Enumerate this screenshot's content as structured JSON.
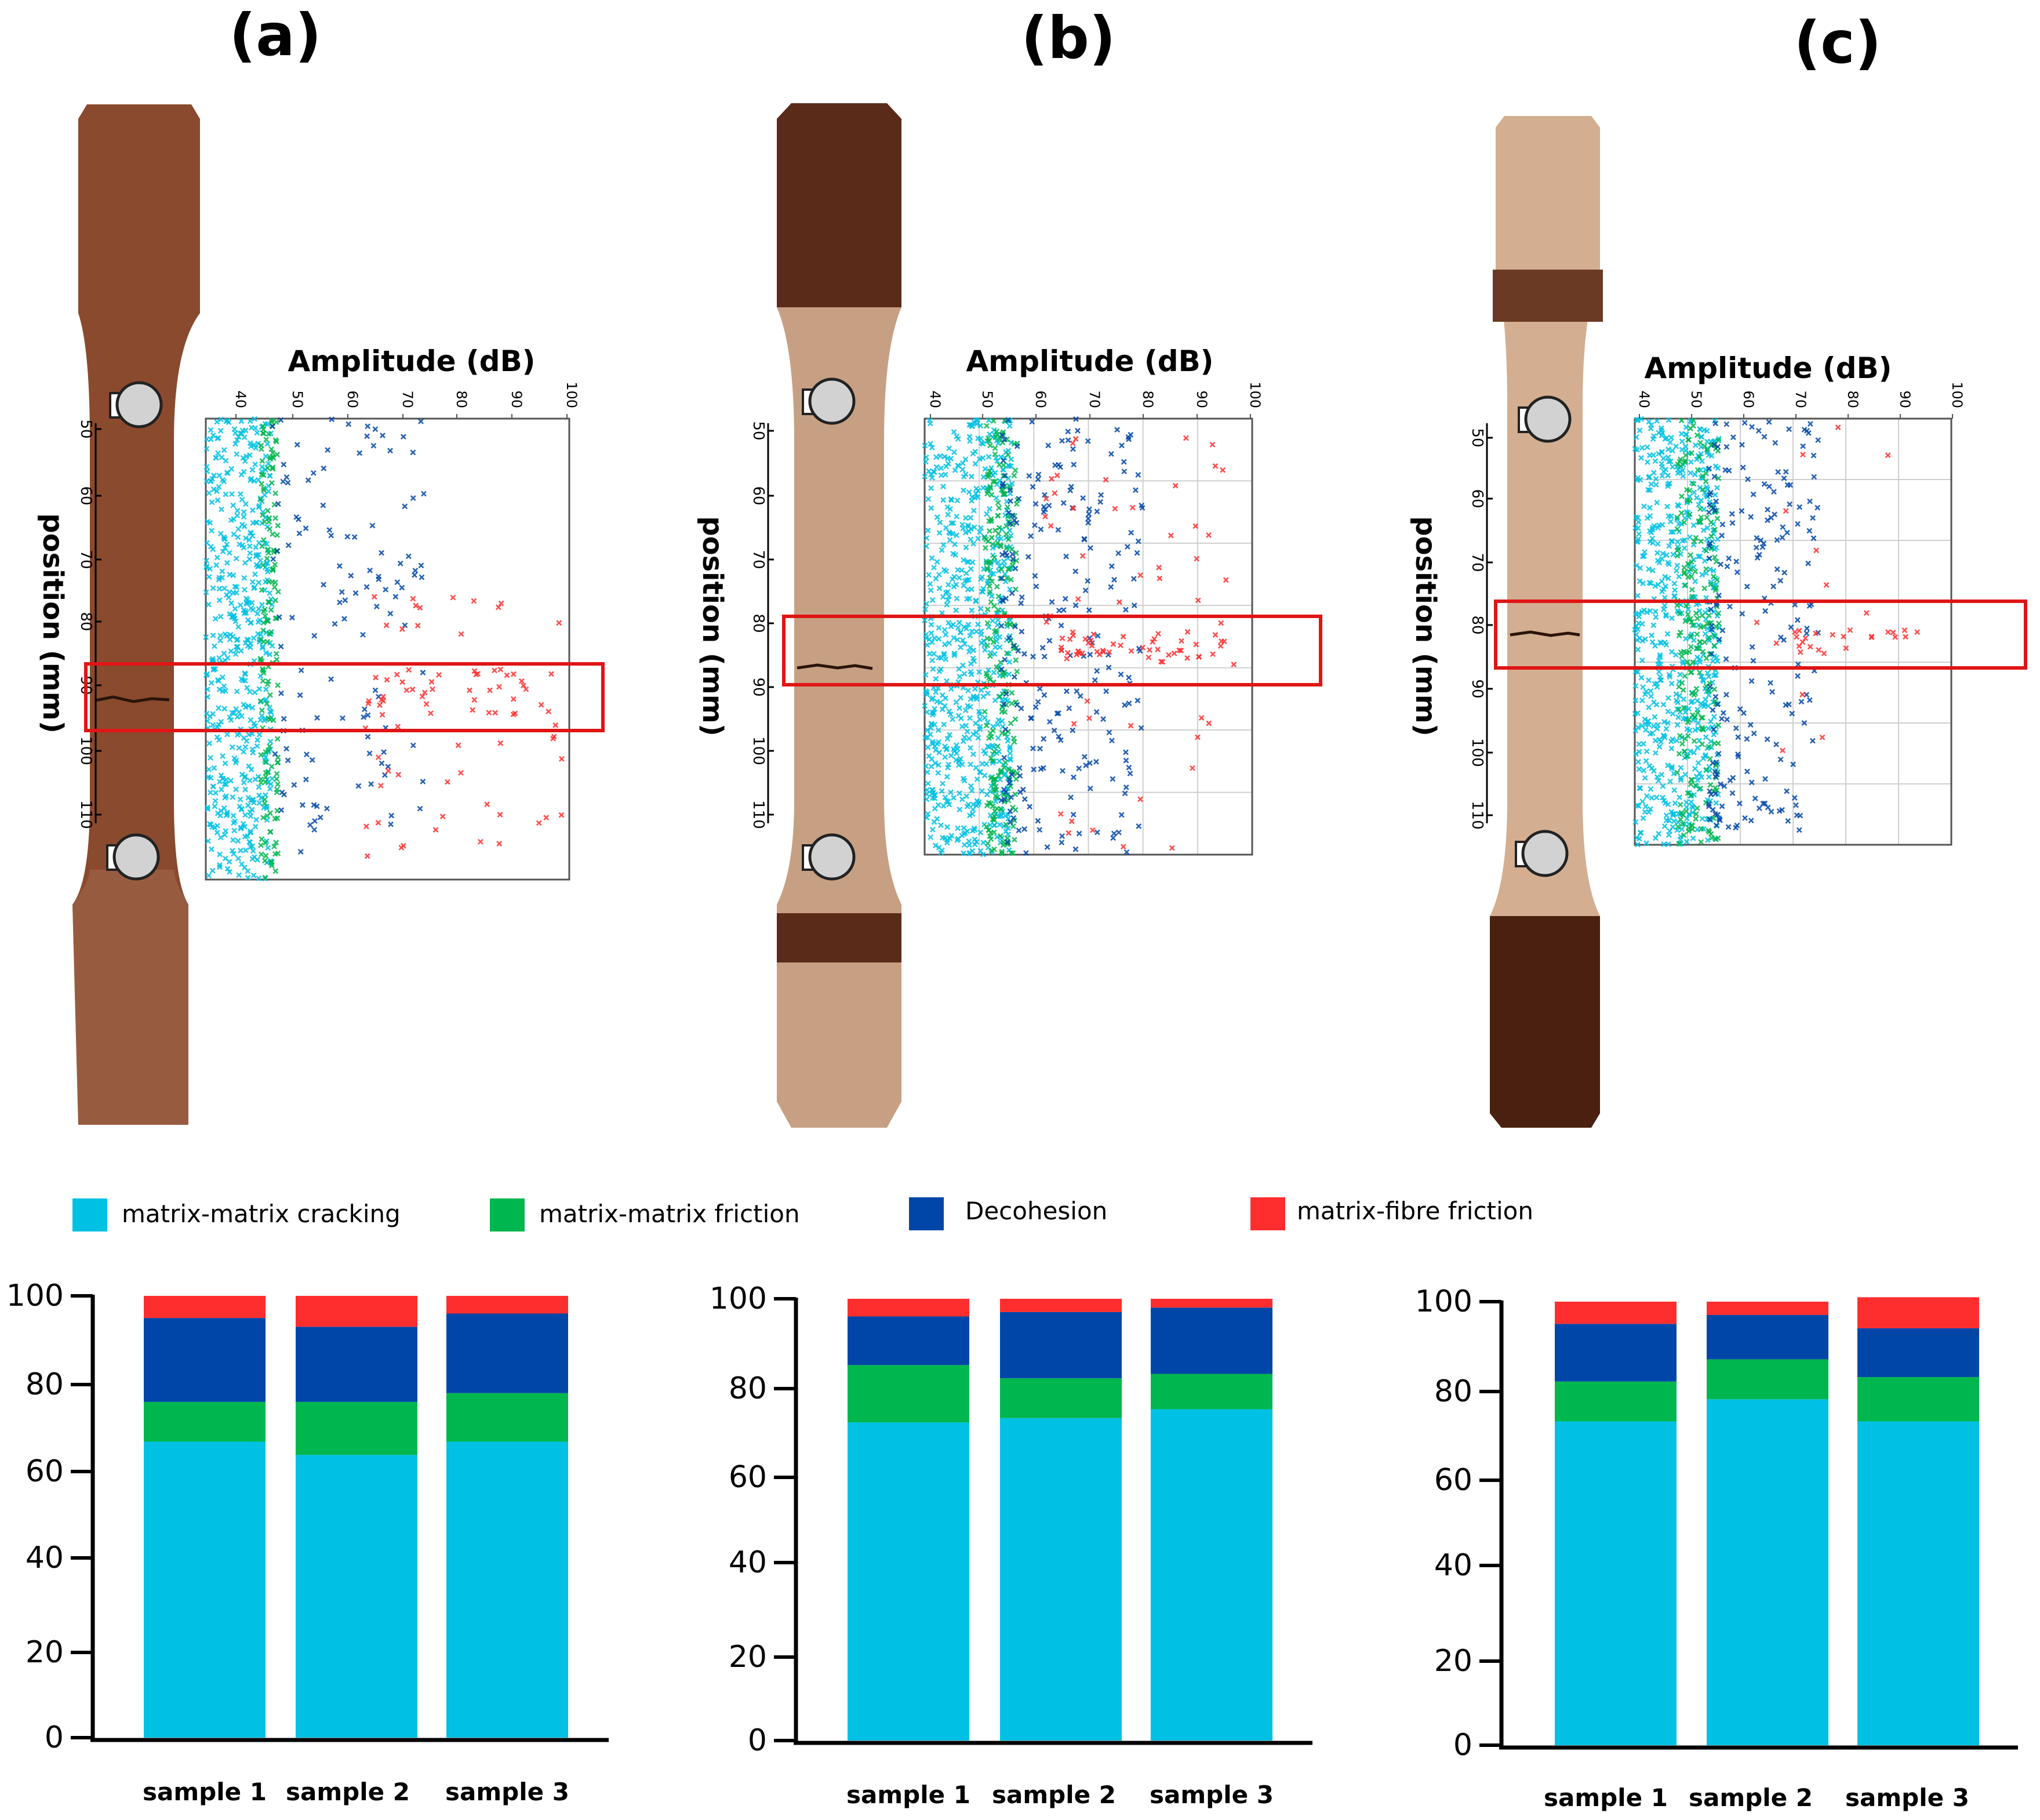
{
  "panel_labels": [
    "(a)",
    "(b)",
    "(c)"
  ],
  "scatter_axis": {
    "xlabel": "Amplitude (dB)",
    "ylabel": "position (mm)",
    "x_ticks": [
      "40",
      "50",
      "60",
      "70",
      "80",
      "90",
      "100"
    ],
    "y_ticks": [
      "50",
      "60",
      "70",
      "80",
      "90",
      "100",
      "110"
    ]
  },
  "legend": [
    {
      "label": "matrix-matrix cracking",
      "color": "#00c1e3"
    },
    {
      "label": "matrix-matrix friction",
      "color": "#00b64e"
    },
    {
      "label": "Decohesion",
      "color": "#0046a8"
    },
    {
      "label": "matrix-fibre friction",
      "color": "#ff2e2e"
    }
  ],
  "colors": {
    "axis": "#000000",
    "highlight_box": "#e01515",
    "specimen_a_body": "#8a4a2e",
    "specimen_b_body": "#c7a083",
    "specimen_b_tab": "#5b2b1a",
    "specimen_c_body": "#d3ae90",
    "specimen_c_tab": "#4a2010",
    "sensor": "#d2d2d2"
  },
  "chart_data": [
    {
      "type": "bar",
      "stacked": true,
      "panel": "(a)",
      "categories": [
        "sample 1",
        "sample 2",
        "sample 3"
      ],
      "series": [
        {
          "name": "matrix-matrix cracking",
          "values": [
            67,
            64,
            67
          ]
        },
        {
          "name": "matrix-matrix friction",
          "values": [
            9,
            12,
            11
          ]
        },
        {
          "name": "Decohesion",
          "values": [
            19,
            17,
            18
          ]
        },
        {
          "name": "matrix-fibre friction",
          "values": [
            5,
            7,
            4
          ]
        }
      ],
      "ylim": [
        0,
        100
      ],
      "yticks": [
        "0",
        "20",
        "40",
        "60",
        "80",
        "100"
      ],
      "grid": false
    },
    {
      "type": "bar",
      "stacked": true,
      "panel": "(b)",
      "categories": [
        "sample 1",
        "sample 2",
        "sample 3"
      ],
      "series": [
        {
          "name": "matrix-matrix cracking",
          "values": [
            72,
            73,
            75
          ]
        },
        {
          "name": "matrix-matrix friction",
          "values": [
            13,
            9,
            8
          ]
        },
        {
          "name": "Decohesion",
          "values": [
            11,
            15,
            15
          ]
        },
        {
          "name": "matrix-fibre friction",
          "values": [
            4,
            3,
            2
          ]
        }
      ],
      "ylim": [
        0,
        100
      ],
      "yticks": [
        "0",
        "20",
        "40",
        "60",
        "80",
        "100"
      ],
      "grid": false
    },
    {
      "type": "bar",
      "stacked": true,
      "panel": "(c)",
      "categories": [
        "sample 1",
        "sample 2",
        "sample 3"
      ],
      "series": [
        {
          "name": "matrix-matrix cracking",
          "values": [
            73,
            78,
            73
          ]
        },
        {
          "name": "matrix-matrix friction",
          "values": [
            9,
            9,
            10
          ]
        },
        {
          "name": "Decohesion",
          "values": [
            13,
            10,
            11
          ]
        },
        {
          "name": "matrix-fibre friction",
          "values": [
            5,
            3,
            7
          ]
        }
      ],
      "ylim": [
        0,
        100
      ],
      "yticks": [
        "0",
        "20",
        "40",
        "60",
        "80",
        "100"
      ],
      "grid": false
    },
    {
      "type": "scatter",
      "panel": "(a)",
      "xlabel": "Amplitude (dB)",
      "ylabel": "position (mm)",
      "xlim": [
        40,
        100
      ],
      "ylim": [
        49,
        119
      ],
      "grid": false,
      "highlight_band": [
        86,
        97
      ],
      "clusters": [
        {
          "name": "matrix-matrix cracking",
          "color": "#00c1e3",
          "count": 520,
          "x_range": [
            40,
            51
          ],
          "y_range": [
            49,
            119
          ]
        },
        {
          "name": "matrix-matrix friction",
          "color": "#00b64e",
          "count": 150,
          "x_range": [
            49,
            52
          ],
          "y_range": [
            49,
            119
          ]
        },
        {
          "name": "Decohesion",
          "color": "#0046a8",
          "count": 120,
          "x_range": [
            51,
            76
          ],
          "y_range": [
            49,
            117
          ]
        },
        {
          "name": "matrix-fibre friction",
          "color": "#ff2e2e",
          "count": 85,
          "x_range": [
            66,
            100
          ],
          "y_range": [
            76,
            116
          ],
          "focus": {
            "x_range": [
              66,
              98
            ],
            "y_range": [
              87,
              94
            ],
            "count": 35
          }
        }
      ]
    },
    {
      "type": "scatter",
      "panel": "(b)",
      "xlabel": "Amplitude (dB)",
      "ylabel": "position (mm)",
      "xlim": [
        40,
        100
      ],
      "ylim": [
        49,
        116
      ],
      "grid": true,
      "highlight_band": [
        79,
        88
      ],
      "clusters": [
        {
          "name": "matrix-matrix cracking",
          "color": "#00c1e3",
          "count": 650,
          "x_range": [
            40,
            56
          ],
          "y_range": [
            49,
            116
          ]
        },
        {
          "name": "matrix-matrix friction",
          "color": "#00b64e",
          "count": 230,
          "x_range": [
            51,
            57
          ],
          "y_range": [
            49,
            116
          ]
        },
        {
          "name": "Decohesion",
          "color": "#0046a8",
          "count": 230,
          "x_range": [
            54,
            80
          ],
          "y_range": [
            49,
            116
          ]
        },
        {
          "name": "matrix-fibre friction",
          "color": "#ff2e2e",
          "count": 100,
          "x_range": [
            62,
            97
          ],
          "y_range": [
            50,
            115
          ],
          "focus": {
            "x_range": [
              65,
              96
            ],
            "y_range": [
              82,
              86
            ],
            "count": 45
          }
        }
      ]
    },
    {
      "type": "scatter",
      "panel": "(c)",
      "xlabel": "Amplitude (dB)",
      "ylabel": "position (mm)",
      "xlim": [
        40,
        100
      ],
      "ylim": [
        49,
        116
      ],
      "grid": true,
      "highlight_band": [
        78,
        89
      ],
      "clusters": [
        {
          "name": "matrix-matrix cracking",
          "color": "#00c1e3",
          "count": 620,
          "x_range": [
            40,
            56
          ],
          "y_range": [
            49,
            116
          ]
        },
        {
          "name": "matrix-matrix friction",
          "color": "#00b64e",
          "count": 220,
          "x_range": [
            48,
            56
          ],
          "y_range": [
            49,
            116
          ]
        },
        {
          "name": "Decohesion",
          "color": "#0046a8",
          "count": 200,
          "x_range": [
            54,
            75
          ],
          "y_range": [
            49,
            114
          ]
        },
        {
          "name": "matrix-fibre friction",
          "color": "#ff2e2e",
          "count": 35,
          "x_range": [
            63,
            95
          ],
          "y_range": [
            50,
            104
          ],
          "focus": {
            "x_range": [
              69,
              95
            ],
            "y_range": [
              82,
              86
            ],
            "count": 22
          }
        }
      ]
    }
  ]
}
